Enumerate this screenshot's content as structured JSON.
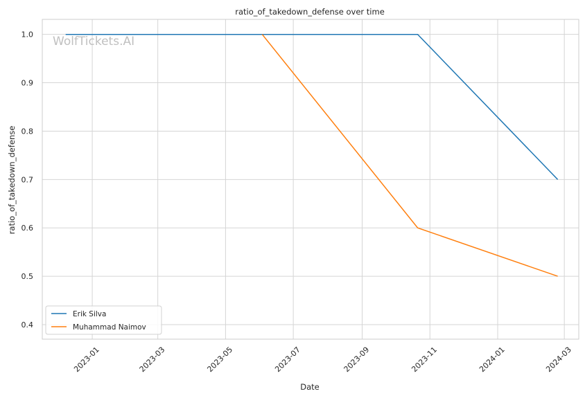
{
  "chart_data": {
    "type": "line",
    "title": "ratio_of_takedown_defense over time",
    "xlabel": "Date",
    "ylabel": "ratio_of_takedown_defense",
    "watermark": "WolfTickets.AI",
    "xlim": [
      "2022-11-17",
      "2024-03-14"
    ],
    "ylim": [
      0.37,
      1.031
    ],
    "x_ticks": [
      "2023-01",
      "2023-03",
      "2023-05",
      "2023-07",
      "2023-09",
      "2023-11",
      "2024-01",
      "2024-03"
    ],
    "y_ticks": [
      "0.4",
      "0.5",
      "0.6",
      "0.7",
      "0.8",
      "0.9",
      "1.0"
    ],
    "grid": true,
    "legend_position": "lower-left",
    "series": [
      {
        "name": "Erik Silva",
        "color": "#1f77b4",
        "points": [
          {
            "x": "2022-12-08",
            "y": 1.0
          },
          {
            "x": "2023-10-21",
            "y": 1.0
          },
          {
            "x": "2024-02-24",
            "y": 0.7
          }
        ]
      },
      {
        "name": "Muhammad Naimov",
        "color": "#ff7f0e",
        "points": [
          {
            "x": "2023-06-03",
            "y": 1.0
          },
          {
            "x": "2023-10-21",
            "y": 0.6
          },
          {
            "x": "2024-02-24",
            "y": 0.5
          }
        ]
      }
    ]
  }
}
